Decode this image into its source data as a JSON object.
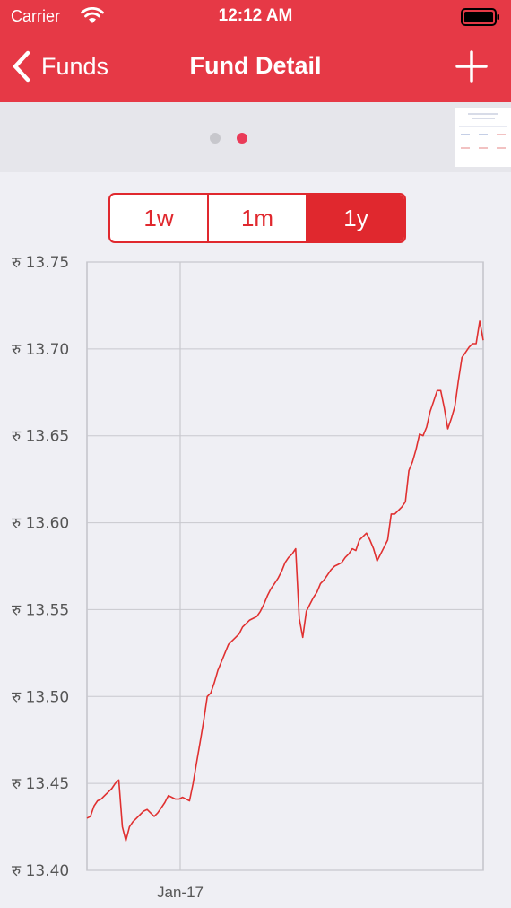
{
  "status_bar": {
    "carrier": "Carrier",
    "time": "12:12 AM"
  },
  "nav": {
    "back_label": "Funds",
    "title": "Fund Detail"
  },
  "pager": {
    "page_count": 2,
    "active_page": 2
  },
  "segments": {
    "items": [
      "1w",
      "1m",
      "1y"
    ],
    "selected": "1y"
  },
  "colors": {
    "brand": "#e63946",
    "accent": "#e0282e",
    "line": "#e03030",
    "active_dot": "#ea3b58"
  },
  "chart_data": {
    "type": "line",
    "y_tick_labels": [
      "रु 13.75",
      "रु 13.70",
      "रु 13.65",
      "रु 13.60",
      "रु 13.55",
      "रु 13.50",
      "रु 13.45",
      "रु 13.40"
    ],
    "x_tick_labels": [
      "Jan-17"
    ],
    "ylim": [
      13.4,
      13.75
    ],
    "grid": true,
    "series": [
      {
        "values": [
          13.43,
          13.431,
          13.437,
          13.44,
          13.441,
          13.443,
          13.445,
          13.447,
          13.45,
          13.452,
          13.425,
          13.417,
          13.425,
          13.428,
          13.43,
          13.432,
          13.434,
          13.435,
          13.433,
          13.431,
          13.433,
          13.436,
          13.439,
          13.443,
          13.442,
          13.441,
          13.441,
          13.442,
          13.441,
          13.44,
          13.45,
          13.462,
          13.474,
          13.486,
          13.5,
          13.502,
          13.508,
          13.515,
          13.52,
          13.525,
          13.53,
          13.532,
          13.534,
          13.536,
          13.54,
          13.542,
          13.544,
          13.545,
          13.546,
          13.549,
          13.553,
          13.558,
          13.562,
          13.565,
          13.568,
          13.572,
          13.577,
          13.58,
          13.582,
          13.585,
          13.545,
          13.534,
          13.549,
          13.553,
          13.557,
          13.56,
          13.565,
          13.567,
          13.57,
          13.573,
          13.575,
          13.576,
          13.577,
          13.58,
          13.582,
          13.585,
          13.584,
          13.59,
          13.592,
          13.594,
          13.59,
          13.585,
          13.578,
          13.582,
          13.586,
          13.59,
          13.605,
          13.605,
          13.607,
          13.609,
          13.612,
          13.63,
          13.635,
          13.642,
          13.651,
          13.65,
          13.655,
          13.664,
          13.67,
          13.676,
          13.676,
          13.666,
          13.654,
          13.66,
          13.667,
          13.682,
          13.695,
          13.698,
          13.701,
          13.703,
          13.703,
          13.716,
          13.705
        ]
      }
    ]
  }
}
